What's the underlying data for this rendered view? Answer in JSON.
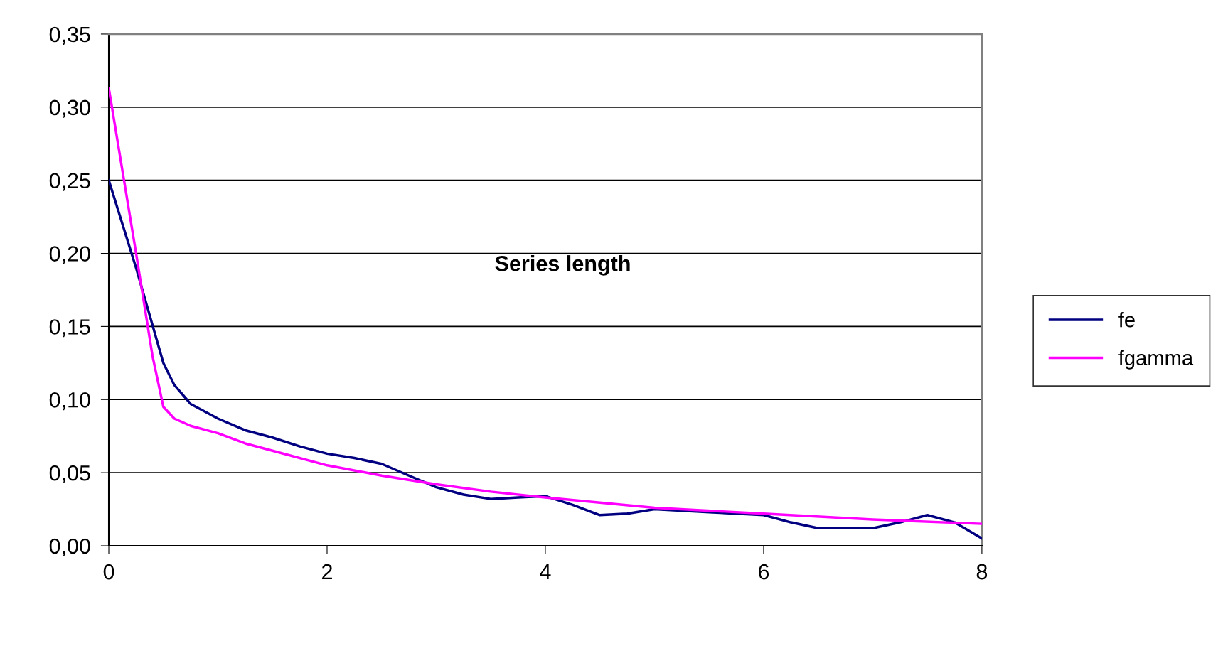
{
  "chart_data": {
    "type": "line",
    "title": "Series length",
    "xlim": [
      0,
      8
    ],
    "xticks": [
      0,
      2,
      4,
      6,
      8
    ],
    "ylim": [
      0,
      0.35
    ],
    "yticks": [
      {
        "value": 0,
        "label": "0,00"
      },
      {
        "value": 0.05,
        "label": "0,05"
      },
      {
        "value": 0.1,
        "label": "0,10"
      },
      {
        "value": 0.15,
        "label": "0,15"
      },
      {
        "value": 0.2,
        "label": "0,20"
      },
      {
        "value": 0.25,
        "label": "0,25"
      },
      {
        "value": 0.3,
        "label": "0,30"
      },
      {
        "value": 0.35,
        "label": "0,35"
      }
    ],
    "grid": "y",
    "legend": "right",
    "marker": "none",
    "line_style": "solid",
    "series": [
      {
        "name": "fe",
        "color": "#000080",
        "x": [
          0,
          0.25,
          0.5,
          0.6,
          0.75,
          1,
          1.25,
          1.5,
          1.75,
          2,
          2.25,
          2.5,
          2.75,
          3,
          3.25,
          3.5,
          3.75,
          4,
          4.25,
          4.5,
          4.75,
          5,
          5.5,
          6,
          6.25,
          6.5,
          7,
          7.25,
          7.5,
          7.75,
          8
        ],
        "values": [
          0.25,
          0.19,
          0.125,
          0.11,
          0.097,
          0.087,
          0.079,
          0.074,
          0.068,
          0.063,
          0.06,
          0.056,
          0.048,
          0.04,
          0.035,
          0.032,
          0.033,
          0.034,
          0.028,
          0.021,
          0.022,
          0.025,
          0.023,
          0.021,
          0.016,
          0.012,
          0.012,
          0.016,
          0.021,
          0.016,
          0.005
        ]
      },
      {
        "name": "fgamma",
        "color": "#ff00ff",
        "x": [
          0,
          0.25,
          0.4,
          0.5,
          0.6,
          0.75,
          1,
          1.25,
          1.5,
          2,
          2.5,
          3,
          3.5,
          4,
          5,
          6,
          7,
          8
        ],
        "values": [
          0.313,
          0.2,
          0.13,
          0.095,
          0.087,
          0.082,
          0.077,
          0.07,
          0.065,
          0.055,
          0.048,
          0.042,
          0.037,
          0.033,
          0.026,
          0.022,
          0.018,
          0.015
        ]
      }
    ]
  }
}
